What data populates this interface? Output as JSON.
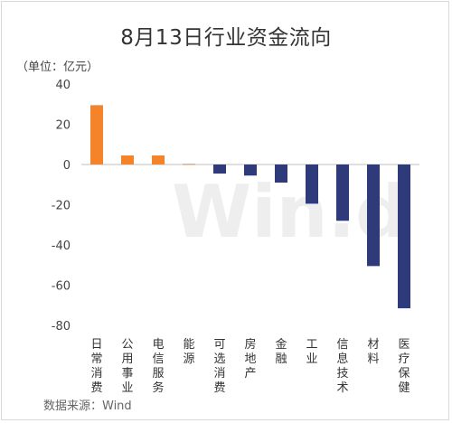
{
  "chart_data": {
    "type": "bar",
    "title": "8月13日行业资金流向",
    "ylabel": "（单位：亿元）",
    "xlabel": "",
    "ylim": [
      -80,
      40
    ],
    "yticks": [
      40,
      20,
      0,
      -20,
      -40,
      -60,
      -80
    ],
    "grid": false,
    "categories": [
      "日常消费",
      "公用事业",
      "电信服务",
      "能源",
      "可选消费",
      "房地产",
      "金融",
      "工业",
      "信息技术",
      "材料",
      "医疗保健"
    ],
    "values": [
      29.5,
      4.5,
      4.5,
      0.3,
      -4.5,
      -5.5,
      -9,
      -19.5,
      -28,
      -50.5,
      -71.5
    ],
    "positive_color": "#F5832A",
    "negative_color": "#2E3A7A",
    "source": "数据来源：Wind",
    "watermark": "Win.d"
  }
}
